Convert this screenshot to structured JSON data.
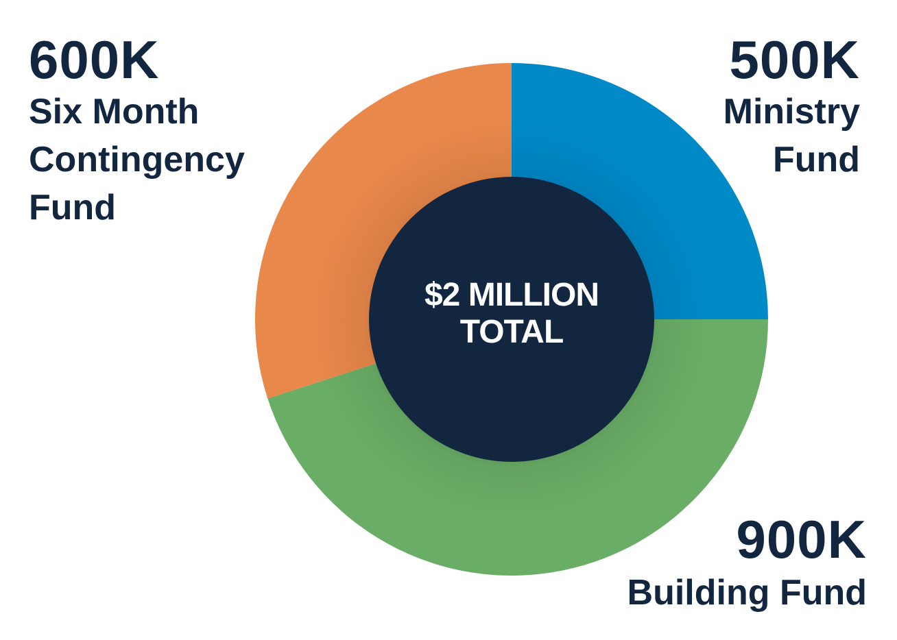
{
  "chart_data": {
    "type": "pie",
    "total_label": "$2 MILLION TOTAL",
    "total_label_lines": [
      "$2 MILLION",
      "TOTAL"
    ],
    "slices": [
      {
        "value_label": "500K",
        "name_lines": [
          "Ministry",
          "Fund"
        ],
        "name": "Ministry Fund",
        "value": 500,
        "color": "#0089c7"
      },
      {
        "value_label": "900K",
        "name_lines": [
          "Building Fund"
        ],
        "name": "Building Fund",
        "value": 900,
        "color": "#6aad66"
      },
      {
        "value_label": "600K",
        "name_lines": [
          "Six Month",
          "Contingency",
          "Fund"
        ],
        "name": "Six Month Contingency Fund",
        "value": 600,
        "color": "#e8884a"
      }
    ],
    "center_color": "#12263f",
    "label_color": "#12263f"
  }
}
